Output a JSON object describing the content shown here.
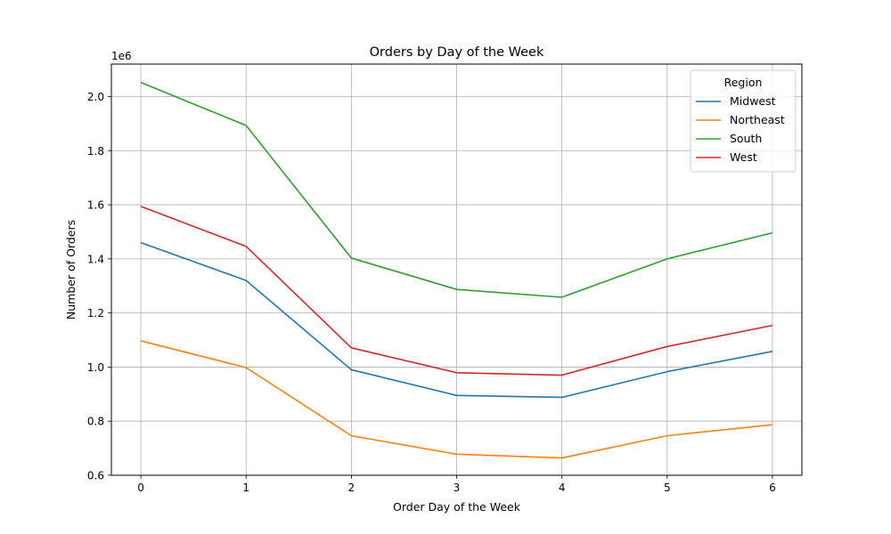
{
  "chart_data": {
    "type": "line",
    "title": "Orders by Day of the Week",
    "xlabel": "Order Day of the Week",
    "ylabel": "Number of Orders",
    "y_offset_label": "1e6",
    "x": [
      0,
      1,
      2,
      3,
      4,
      5,
      6
    ],
    "xlim": [
      -0.28,
      6.28
    ],
    "ylim": [
      0.6,
      2.12
    ],
    "x_ticks": [
      0,
      1,
      2,
      3,
      4,
      5,
      6
    ],
    "y_ticks": [
      0.6,
      0.8,
      1.0,
      1.2,
      1.4,
      1.6,
      1.8,
      2.0
    ],
    "y_tick_labels": [
      "0.6",
      "0.8",
      "1.0",
      "1.2",
      "1.4",
      "1.6",
      "1.8",
      "2.0"
    ],
    "grid": true,
    "legend": {
      "title": "Region",
      "placement": "top-right"
    },
    "series": [
      {
        "name": "Midwest",
        "color": "#1f77b4",
        "values": [
          1.46,
          1.32,
          0.99,
          0.895,
          0.888,
          0.983,
          1.058
        ]
      },
      {
        "name": "Northeast",
        "color": "#ff7f0e",
        "values": [
          1.097,
          0.998,
          0.746,
          0.678,
          0.664,
          0.746,
          0.787
        ]
      },
      {
        "name": "South",
        "color": "#2ca02c",
        "values": [
          2.052,
          1.893,
          1.403,
          1.287,
          1.258,
          1.4,
          1.496
        ]
      },
      {
        "name": "West",
        "color": "#d62728",
        "values": [
          1.594,
          1.446,
          1.071,
          0.979,
          0.97,
          1.076,
          1.154
        ]
      }
    ]
  }
}
